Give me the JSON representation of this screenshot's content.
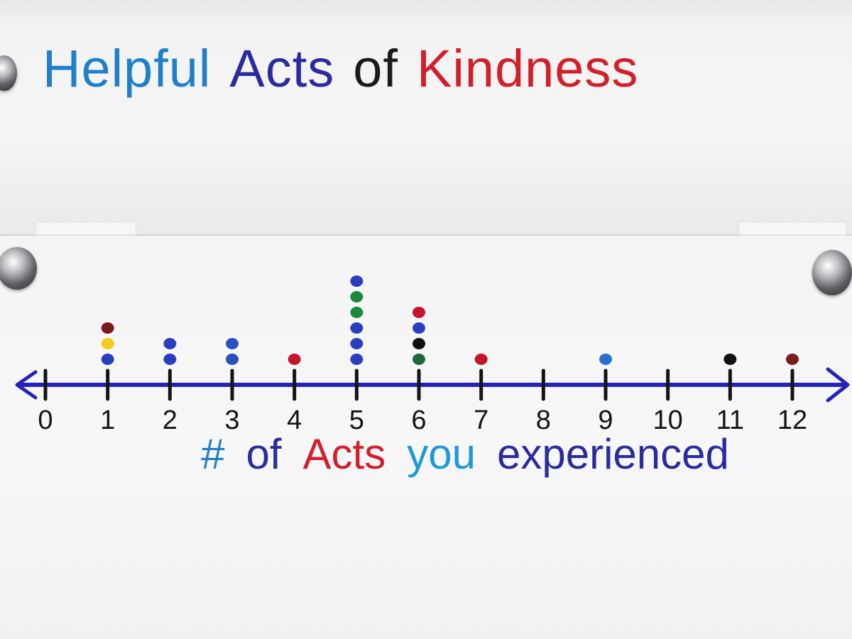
{
  "title": {
    "word1": "Helpful",
    "word2": "Acts",
    "word3": "of",
    "word4": "Kindness"
  },
  "colors": {
    "title_word1": "#1f7fc9",
    "title_word2": "#2a2c9e",
    "title_word3": "#1a1a1a",
    "title_word4": "#d21f2a",
    "axis_line": "#2424b8",
    "ticks": "#141414",
    "label_hash": "#1f7fc9",
    "label_of": "#2a2c9e",
    "label_acts": "#d21f2a",
    "label_you": "#1f9ad6",
    "label_experienced": "#2a2c9e"
  },
  "chart_data": {
    "type": "scatter",
    "subtype": "dot-plot",
    "xlabel": "# of Acts you experienced",
    "xlabel_parts": [
      "#",
      "of",
      "Acts",
      "you",
      "experienced"
    ],
    "x_ticks": [
      "0",
      "1",
      "2",
      "3",
      "4",
      "5",
      "6",
      "7",
      "8",
      "9",
      "10",
      "11",
      "12"
    ],
    "xlim": [
      0,
      12
    ],
    "grid": false,
    "legend": "none",
    "counts": [
      {
        "x": 0,
        "count": 0
      },
      {
        "x": 1,
        "count": 3
      },
      {
        "x": 2,
        "count": 2
      },
      {
        "x": 3,
        "count": 2
      },
      {
        "x": 4,
        "count": 1
      },
      {
        "x": 5,
        "count": 6
      },
      {
        "x": 6,
        "count": 4
      },
      {
        "x": 7,
        "count": 1
      },
      {
        "x": 8,
        "count": 0
      },
      {
        "x": 9,
        "count": 1
      },
      {
        "x": 10,
        "count": 0
      },
      {
        "x": 11,
        "count": 1
      },
      {
        "x": 12,
        "count": 1
      }
    ],
    "dots": [
      {
        "x": 1,
        "color": "#2a3fbf"
      },
      {
        "x": 1,
        "color": "#f2cc1a"
      },
      {
        "x": 1,
        "color": "#7a1a1a"
      },
      {
        "x": 2,
        "color": "#2a3fbf"
      },
      {
        "x": 2,
        "color": "#2a3fbf"
      },
      {
        "x": 3,
        "color": "#2a4fc0"
      },
      {
        "x": 3,
        "color": "#2a4fc0"
      },
      {
        "x": 4,
        "color": "#c4152a"
      },
      {
        "x": 5,
        "color": "#2a3fbf"
      },
      {
        "x": 5,
        "color": "#2a3fbf"
      },
      {
        "x": 5,
        "color": "#2a3fbf"
      },
      {
        "x": 5,
        "color": "#1c8a3a"
      },
      {
        "x": 5,
        "color": "#1c8a3a"
      },
      {
        "x": 5,
        "color": "#2a3fbf"
      },
      {
        "x": 6,
        "color": "#1a6a3a"
      },
      {
        "x": 6,
        "color": "#111111"
      },
      {
        "x": 6,
        "color": "#2a3fbf"
      },
      {
        "x": 6,
        "color": "#c4152a"
      },
      {
        "x": 7,
        "color": "#c4152a"
      },
      {
        "x": 9,
        "color": "#2a6fd0"
      },
      {
        "x": 11,
        "color": "#111111"
      },
      {
        "x": 12,
        "color": "#7a1a1a"
      }
    ]
  }
}
